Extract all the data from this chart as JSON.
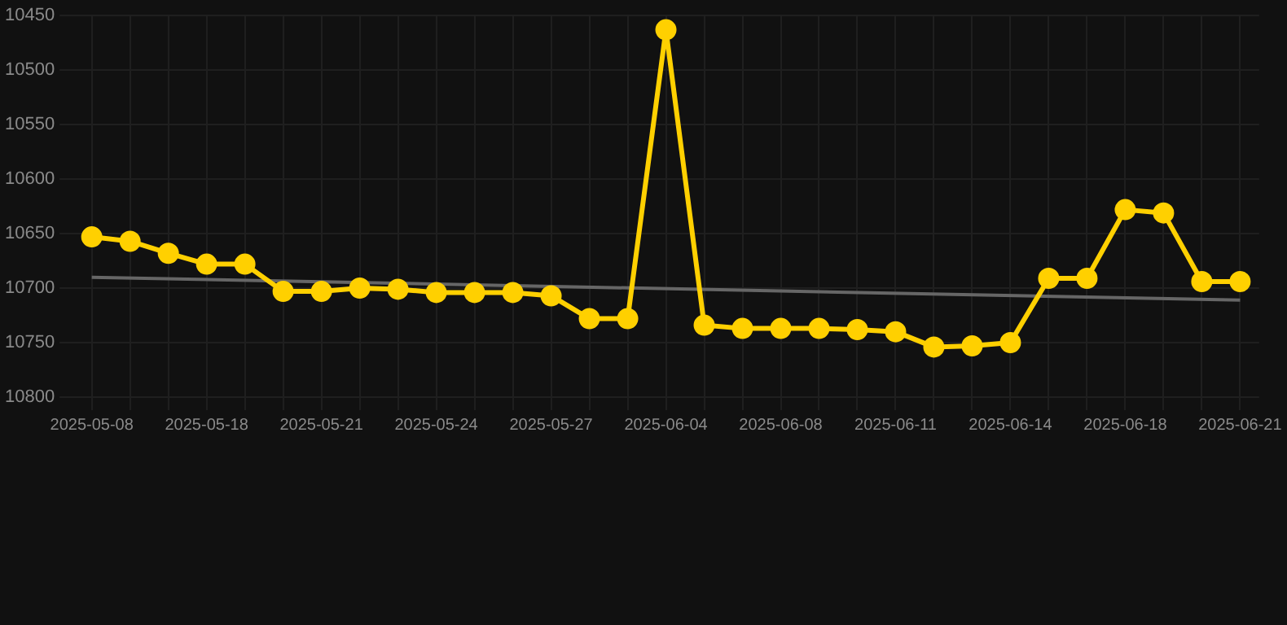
{
  "chart_data": {
    "type": "line",
    "categories": [
      "2025-05-08",
      null,
      null,
      "2025-05-18",
      null,
      null,
      "2025-05-21",
      null,
      null,
      "2025-05-24",
      null,
      null,
      "2025-05-27",
      null,
      null,
      "2025-06-04",
      null,
      null,
      "2025-06-08",
      null,
      null,
      "2025-06-11",
      null,
      null,
      "2025-06-14",
      null,
      null,
      "2025-06-18",
      null,
      null,
      "2025-06-21"
    ],
    "series": [
      {
        "color": "#ffd000",
        "values": [
          10653,
          10657,
          10668,
          10678,
          10678,
          10703,
          10703,
          10700,
          10701,
          10704,
          10704,
          10704,
          10707,
          10728,
          10728,
          10463,
          10734,
          10737,
          10737,
          10737,
          10738,
          10740,
          10754,
          10753,
          10750,
          10691,
          10691,
          10628,
          10631,
          10694,
          10694
        ]
      },
      {
        "type": "line",
        "color": "#666666",
        "values": [
          10690,
          null,
          null,
          null,
          null,
          null,
          null,
          null,
          null,
          null,
          null,
          null,
          null,
          null,
          null,
          null,
          null,
          null,
          null,
          null,
          null,
          null,
          null,
          null,
          null,
          null,
          null,
          null,
          null,
          null,
          10711
        ],
        "marker": "none"
      }
    ],
    "ylim": [
      10800,
      10450
    ],
    "yticks": [
      10450,
      10500,
      10550,
      10600,
      10650,
      10700,
      10750,
      10800
    ],
    "grid": true,
    "marker": "circle",
    "legend": false
  }
}
